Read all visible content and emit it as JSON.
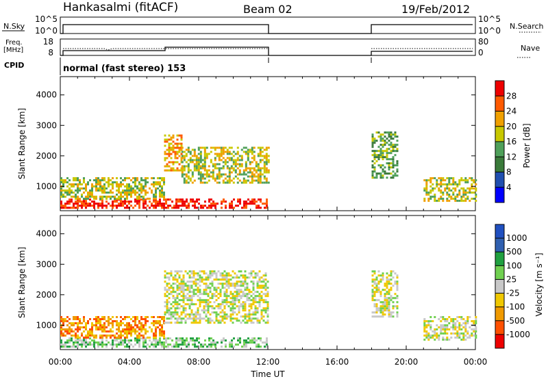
{
  "header": {
    "station": "Hankasalmi (fitACF)",
    "beam": "Beam 02",
    "date": "19/Feb/2012"
  },
  "panels": {
    "nsky_label": "N.Sky",
    "nsky_ticks": [
      "10^5",
      "10^0"
    ],
    "nsearch_label": "N.Search",
    "nsearch_ticks": [
      "10^5",
      "10^0"
    ],
    "freq_label_line1": "Freq.",
    "freq_label_line2": "[MHz]",
    "freq_ticks": [
      "18",
      "8"
    ],
    "nave_label": "Nave",
    "nave_ticks": [
      "80",
      "0"
    ],
    "cpid_label": "CPID",
    "cpid_text": "normal (fast stereo) 153"
  },
  "colors": {
    "power": [
      "#0000ff",
      "#204fb0",
      "#3a7a3a",
      "#4fa05a",
      "#c8c800",
      "#f0a000",
      "#ff5a00",
      "#ee0000"
    ],
    "velocity": [
      "#ee0000",
      "#ff5000",
      "#f09a00",
      "#f0c800",
      "#c8c8c8",
      "#70d050",
      "#20a040",
      "#3060b0",
      "#2050c0"
    ]
  },
  "chart_data": [
    {
      "type": "heatmap",
      "name": "Power",
      "ylabel": "Slant Range [km]",
      "yticks": [
        "1000",
        "2000",
        "3000",
        "4000"
      ],
      "ylim": [
        200,
        4600
      ],
      "xlim": [
        0,
        24
      ],
      "colorbar_label": "Power [dB]",
      "colorbar_ticks": [
        "4",
        "8",
        "12",
        "16",
        "20",
        "24",
        "28"
      ],
      "colorbar_range": [
        0,
        32
      ],
      "observations": [
        {
          "t0": 0.0,
          "t1": 12.0,
          "r0": 300,
          "r1": 600,
          "level": 7
        },
        {
          "t0": 0.0,
          "t1": 6.0,
          "r0": 600,
          "r1": 1300,
          "level": 4
        },
        {
          "t0": 6.0,
          "t1": 7.0,
          "r0": 1500,
          "r1": 2700,
          "level": 5
        },
        {
          "t0": 7.0,
          "t1": 12.0,
          "r0": 1100,
          "r1": 2300,
          "level": 4
        },
        {
          "t0": 18.0,
          "t1": 19.5,
          "r0": 1300,
          "r1": 2800,
          "level": 3
        },
        {
          "t0": 21.0,
          "t1": 24.0,
          "r0": 500,
          "r1": 1300,
          "level": 4
        }
      ]
    },
    {
      "type": "heatmap",
      "name": "Velocity",
      "ylabel": "Slant Range [km]",
      "yticks": [
        "1000",
        "2000",
        "3000",
        "4000"
      ],
      "ylim": [
        200,
        4600
      ],
      "xlim": [
        0,
        24
      ],
      "colorbar_label": "Velocity [m s⁻¹]",
      "colorbar_ticks": [
        "-1000",
        "-500",
        "-100",
        "-25",
        "25",
        "100",
        "500",
        "1000"
      ],
      "observations": [
        {
          "t0": 0.0,
          "t1": 12.0,
          "r0": 300,
          "r1": 600,
          "level": 5
        },
        {
          "t0": 0.0,
          "t1": 6.0,
          "r0": 600,
          "r1": 1300,
          "level": 2
        },
        {
          "t0": 6.0,
          "t1": 12.0,
          "r0": 1100,
          "r1": 2800,
          "level": 4
        },
        {
          "t0": 18.0,
          "t1": 19.5,
          "r0": 1300,
          "r1": 2800,
          "level": 4
        },
        {
          "t0": 21.0,
          "t1": 24.0,
          "r0": 500,
          "r1": 1300,
          "level": 4
        }
      ]
    }
  ],
  "xaxis": {
    "ticks": [
      "00:00",
      "04:00",
      "08:00",
      "12:00",
      "16:00",
      "20:00",
      "00:00"
    ],
    "label": "Time UT"
  }
}
